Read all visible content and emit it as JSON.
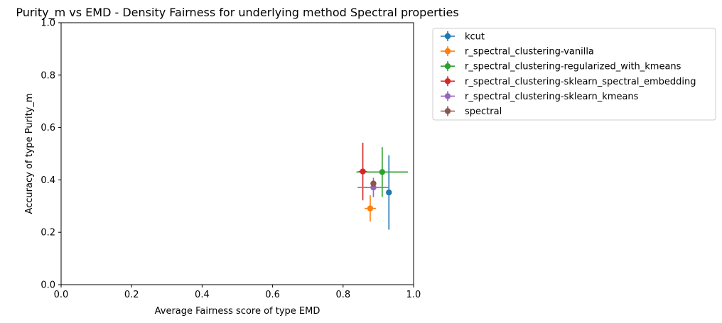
{
  "chart_data": {
    "type": "scatter",
    "title": "Purity_m vs EMD - Density Fairness for underlying method Spectral properties",
    "xlabel": "Average Fairness score of type EMD",
    "ylabel": "Accuracy of type Purity_m",
    "xlim": [
      0.0,
      1.0
    ],
    "ylim": [
      0.0,
      1.0
    ],
    "xticks": [
      "0.0",
      "0.2",
      "0.4",
      "0.6",
      "0.8",
      "1.0"
    ],
    "yticks": [
      "0.0",
      "0.2",
      "0.4",
      "0.6",
      "0.8",
      "1.0"
    ],
    "grid": false,
    "legend_position": "outside-right-top",
    "series": [
      {
        "name": "kcut",
        "color": "#1f77b4",
        "x": 0.93,
        "y": 0.352,
        "xerr": 0.0,
        "yerr": 0.142
      },
      {
        "name": "r_spectral_clustering-vanilla",
        "color": "#ff7f0e",
        "x": 0.877,
        "y": 0.291,
        "xerr": 0.016,
        "yerr": 0.05
      },
      {
        "name": "r_spectral_clustering-regularized_with_kmeans",
        "color": "#2ca02c",
        "x": 0.911,
        "y": 0.43,
        "xerr": 0.073,
        "yerr": 0.095
      },
      {
        "name": "r_spectral_clustering-sklearn_spectral_embedding",
        "color": "#d62728",
        "x": 0.856,
        "y": 0.432,
        "xerr": 0.012,
        "yerr": 0.11
      },
      {
        "name": "r_spectral_clustering-sklearn_kmeans",
        "color": "#9467bd",
        "x": 0.886,
        "y": 0.371,
        "xerr": 0.045,
        "yerr": 0.037
      },
      {
        "name": "spectral",
        "color": "#8c564b",
        "x": 0.886,
        "y": 0.386,
        "xerr": 0.0,
        "yerr": 0.0
      }
    ]
  }
}
